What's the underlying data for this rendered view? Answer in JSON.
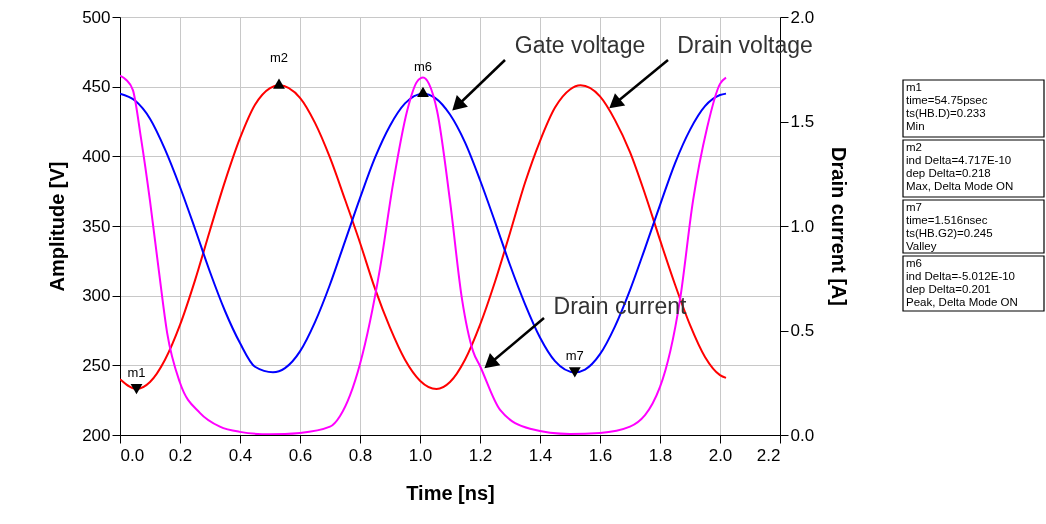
{
  "chart_data": {
    "type": "line",
    "xlabel": "Time [ns]",
    "ylabel": "Amplitude [V]",
    "y2label": "Drain current [A]",
    "xlim": [
      0,
      2.2
    ],
    "xticks": [
      {
        "value": 0,
        "label": "0.0"
      },
      0.2,
      0.4,
      0.6,
      0.8,
      {
        "value": 1,
        "label": "1.0"
      },
      1.2,
      1.4,
      1.6,
      1.8,
      {
        "value": 2,
        "label": "2.0"
      },
      2.2
    ],
    "ylim": [
      200,
      500
    ],
    "yticks": [
      200,
      250,
      300,
      350,
      400,
      450,
      500
    ],
    "y2lim": [
      0,
      2
    ],
    "y2ticks": [
      {
        "value": 0,
        "label": "0.0"
      },
      0.5,
      {
        "value": 1,
        "label": "1.0"
      },
      1.5,
      {
        "value": 2,
        "label": "2.0"
      }
    ],
    "grid": true,
    "series": [
      {
        "name": "Drain voltage",
        "color": "#ff0000",
        "x": [
          0,
          0.055,
          0.1,
          0.15,
          0.2,
          0.25,
          0.3,
          0.35,
          0.4,
          0.45,
          0.5,
          0.53,
          0.6,
          0.65,
          0.7,
          0.75,
          0.8,
          0.85,
          0.9,
          0.95,
          1.0,
          1.055,
          1.1,
          1.15,
          1.2,
          1.25,
          1.3,
          1.35,
          1.4,
          1.45,
          1.5,
          1.535,
          1.6,
          1.65,
          1.7,
          1.75,
          1.8,
          1.85,
          1.9,
          1.95,
          2.0,
          2.02
        ],
        "values": [
          240,
          233,
          238,
          254,
          279,
          311,
          347,
          382,
          413,
          437,
          449,
          451,
          442,
          424,
          399,
          369,
          338,
          305,
          277,
          254,
          239,
          233,
          238,
          254,
          279,
          310,
          345,
          381,
          411,
          435,
          448,
          451,
          443,
          426,
          403,
          373,
          340,
          308,
          279,
          256,
          243,
          241
        ]
      },
      {
        "name": "Gate voltage",
        "color": "#0000ff",
        "x": [
          0,
          0.05,
          0.1,
          0.15,
          0.2,
          0.25,
          0.3,
          0.35,
          0.4,
          0.45,
          0.51,
          0.55,
          0.6,
          0.65,
          0.7,
          0.75,
          0.8,
          0.85,
          0.9,
          0.95,
          1.01,
          1.05,
          1.1,
          1.15,
          1.2,
          1.25,
          1.3,
          1.35,
          1.4,
          1.45,
          1.516,
          1.55,
          1.6,
          1.65,
          1.7,
          1.75,
          1.8,
          1.85,
          1.9,
          1.95,
          2.0,
          2.02
        ],
        "values": [
          445,
          440,
          427,
          405,
          378,
          348,
          317,
          289,
          266,
          249,
          245,
          248,
          260,
          281,
          308,
          339,
          370,
          399,
          422,
          438,
          445,
          442,
          430,
          410,
          383,
          353,
          322,
          294,
          270,
          253,
          245,
          247,
          258,
          278,
          304,
          334,
          365,
          395,
          419,
          436,
          444,
          445
        ]
      },
      {
        "name": "Drain current",
        "color": "#ff00ff",
        "axis": "y2",
        "x": [
          0,
          0.02,
          0.043,
          0.07,
          0.1,
          0.13,
          0.157,
          0.2,
          0.267,
          0.333,
          0.4,
          0.5,
          0.6,
          0.7,
          0.733,
          0.8,
          0.867,
          0.91,
          0.957,
          0.99,
          1.01,
          1.03,
          1.057,
          1.1,
          1.14,
          1.177,
          1.2,
          1.267,
          1.367,
          1.5,
          1.6,
          1.7,
          1.8,
          1.867,
          1.91,
          1.957,
          2.0,
          2.02
        ],
        "values": [
          1.72,
          1.7,
          1.65,
          1.42,
          1.12,
          0.78,
          0.49,
          0.25,
          0.105,
          0.04,
          0.015,
          0.003,
          0.01,
          0.04,
          0.09,
          0.34,
          0.8,
          1.2,
          1.55,
          1.69,
          1.71,
          1.68,
          1.55,
          1.12,
          0.65,
          0.4,
          0.33,
          0.12,
          0.03,
          0.005,
          0.01,
          0.04,
          0.23,
          0.65,
          1.12,
          1.47,
          1.68,
          1.71
        ]
      },
      {
        "type": "scatter",
        "marker": "triangle",
        "color": "#000000",
        "x": [
          0.055,
          0.53,
          1.01,
          1.516
        ],
        "values": [
          233,
          451,
          445,
          245
        ]
      }
    ],
    "annotations": [
      {
        "text": "m1",
        "x": 0.055,
        "y": 233
      },
      {
        "text": "m2",
        "x": 0.53,
        "y": 451
      },
      {
        "text": "m6",
        "x": 1.01,
        "y": 445
      },
      {
        "text": "m7",
        "x": 1.516,
        "y": 245
      },
      "m1\ntime=54.75psec\nts(HB.D)=0.233\nMin",
      "m2\nind Delta=4.717E-10\ndep Delta=0.218\nMax, Delta Mode ON",
      "m7\ntime=1.516nsec\nts(HB.G2)=0.245\nValley",
      "m6\nind Delta=-5.012E-10\ndep Delta=0.201\nPeak, Delta Mode ON"
    ]
  }
}
